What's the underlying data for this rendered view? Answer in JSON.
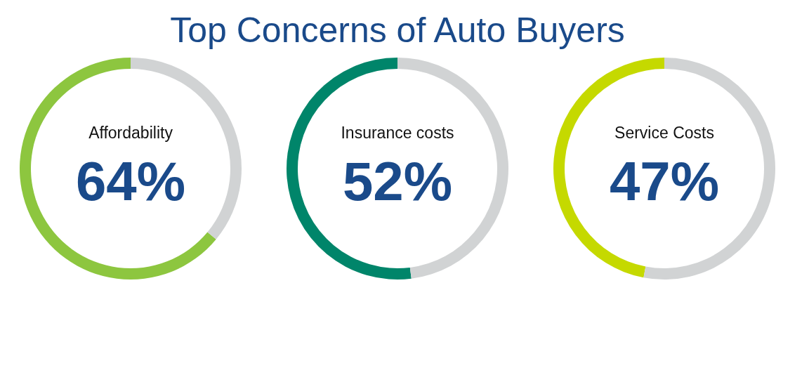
{
  "chart_data": [
    {
      "type": "donut",
      "title": "Top Concerns of Auto Buyers",
      "categories": [
        "Affordability",
        null
      ],
      "values": [
        64,
        36
      ],
      "colors": [
        "#8dc63f",
        "#d1d3d4"
      ],
      "value_labels": [
        "64%",
        null
      ]
    },
    {
      "type": "donut",
      "categories": [
        "Insurance costs",
        null
      ],
      "values": [
        52,
        48
      ],
      "colors": [
        "#00856a",
        "#d1d3d4"
      ],
      "value_labels": [
        "52%",
        null
      ]
    },
    {
      "type": "donut",
      "categories": [
        "Service Costs",
        null
      ],
      "values": [
        47,
        53
      ],
      "colors": [
        "#c5d900",
        "#d1d3d4"
      ],
      "value_labels": [
        "47%",
        null
      ]
    }
  ]
}
